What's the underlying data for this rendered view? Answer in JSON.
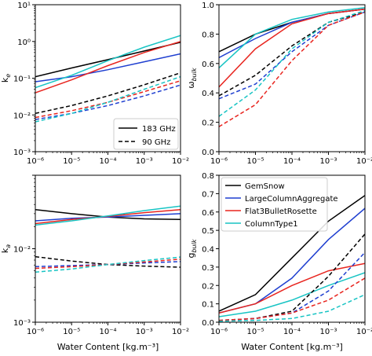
{
  "colors": {
    "GemSnow": "#000000",
    "LargeColumnAggregate": "#1f3fd0",
    "Flat3BulletRosette": "#e8251f",
    "ColumnType1": "#18c4c4"
  },
  "x_ticks": [
    "10⁻⁶",
    "10⁻⁵",
    "10⁻⁴",
    "10⁻³",
    "10⁻²"
  ],
  "x_label": "Water Content [kg.m⁻³]",
  "chart_data": [
    {
      "id": "ke",
      "type": "line",
      "xscale": "log",
      "yscale": "log",
      "xlim": [
        1e-06,
        0.01
      ],
      "ylim": [
        0.001,
        10
      ],
      "ylabel": "k",
      "ylabel_sub": "e",
      "x_tick_labels": [
        "10⁻⁶",
        "10⁻⁵",
        "10⁻⁴",
        "10⁻³",
        "10⁻²"
      ],
      "y_tick_labels": [
        "10⁻³",
        "10⁻²",
        "10⁻¹",
        "10⁰",
        "10¹"
      ],
      "legend": {
        "position": "lower-right",
        "entries": [
          {
            "label": "183 GHz",
            "style": "solid"
          },
          {
            "label": "90 GHz",
            "style": "dashed"
          }
        ]
      },
      "x": [
        1e-06,
        1e-05,
        0.0001,
        0.001,
        0.01
      ],
      "series": [
        {
          "name": "GemSnow",
          "freq": "183 GHz",
          "values": [
            0.11,
            0.19,
            0.32,
            0.55,
            0.95
          ]
        },
        {
          "name": "LargeColumnAggregate",
          "freq": "183 GHz",
          "values": [
            0.08,
            0.11,
            0.17,
            0.28,
            0.46
          ]
        },
        {
          "name": "Flat3BulletRosette",
          "freq": "183 GHz",
          "values": [
            0.04,
            0.09,
            0.22,
            0.5,
            1.0
          ]
        },
        {
          "name": "ColumnType1",
          "freq": "183 GHz",
          "values": [
            0.055,
            0.12,
            0.3,
            0.7,
            1.45
          ]
        },
        {
          "name": "GemSnow",
          "freq": "90 GHz",
          "values": [
            0.011,
            0.018,
            0.033,
            0.066,
            0.14
          ]
        },
        {
          "name": "LargeColumnAggregate",
          "freq": "90 GHz",
          "values": [
            0.0075,
            0.011,
            0.018,
            0.033,
            0.065
          ]
        },
        {
          "name": "Flat3BulletRosette",
          "freq": "90 GHz",
          "values": [
            0.0085,
            0.013,
            0.022,
            0.043,
            0.085
          ]
        },
        {
          "name": "ColumnType1",
          "freq": "90 GHz",
          "values": [
            0.0065,
            0.011,
            0.022,
            0.05,
            0.11
          ]
        }
      ]
    },
    {
      "id": "omega",
      "type": "line",
      "xscale": "log",
      "yscale": "linear",
      "xlim": [
        1e-06,
        0.01
      ],
      "ylim": [
        0,
        1.0
      ],
      "ylabel": "ω",
      "ylabel_sub": "bulk",
      "x_tick_labels": [
        "10⁻⁶",
        "10⁻⁵",
        "10⁻⁴",
        "10⁻³",
        "10⁻²"
      ],
      "y_ticks": [
        0,
        0.2,
        0.4,
        0.6,
        0.8,
        1.0
      ],
      "y_tick_labels": [
        "0.0",
        "0.2",
        "0.4",
        "0.6",
        "0.8",
        "1.0"
      ],
      "x": [
        1e-06,
        1e-05,
        0.0001,
        0.001,
        0.01
      ],
      "series": [
        {
          "name": "GemSnow",
          "freq": "183 GHz",
          "values": [
            0.68,
            0.8,
            0.88,
            0.94,
            0.97
          ]
        },
        {
          "name": "LargeColumnAggregate",
          "freq": "183 GHz",
          "values": [
            0.64,
            0.77,
            0.88,
            0.94,
            0.97
          ]
        },
        {
          "name": "Flat3BulletRosette",
          "freq": "183 GHz",
          "values": [
            0.44,
            0.7,
            0.87,
            0.94,
            0.97
          ]
        },
        {
          "name": "ColumnType1",
          "freq": "183 GHz",
          "values": [
            0.57,
            0.8,
            0.9,
            0.95,
            0.98
          ]
        },
        {
          "name": "GemSnow",
          "freq": "90 GHz",
          "values": [
            0.38,
            0.52,
            0.72,
            0.88,
            0.95
          ]
        },
        {
          "name": "LargeColumnAggregate",
          "freq": "90 GHz",
          "values": [
            0.36,
            0.46,
            0.68,
            0.86,
            0.95
          ]
        },
        {
          "name": "Flat3BulletRosette",
          "freq": "90 GHz",
          "values": [
            0.17,
            0.32,
            0.62,
            0.86,
            0.95
          ]
        },
        {
          "name": "ColumnType1",
          "freq": "90 GHz",
          "values": [
            0.24,
            0.42,
            0.7,
            0.88,
            0.96
          ]
        }
      ]
    },
    {
      "id": "ka",
      "type": "line",
      "xscale": "log",
      "yscale": "log",
      "xlim": [
        1e-06,
        0.01
      ],
      "ylim": [
        0.001,
        0.1
      ],
      "ylabel": "k",
      "ylabel_sub": "a",
      "x_tick_labels": [
        "10⁻⁶",
        "10⁻⁵",
        "10⁻⁴",
        "10⁻³",
        "10⁻²"
      ],
      "y_tick_labels": [
        "10⁻³",
        "10⁻²"
      ],
      "x": [
        1e-06,
        1e-05,
        0.0001,
        0.001,
        0.01
      ],
      "series": [
        {
          "name": "GemSnow",
          "freq": "183 GHz",
          "values": [
            0.034,
            0.03,
            0.027,
            0.0255,
            0.025
          ]
        },
        {
          "name": "LargeColumnAggregate",
          "freq": "183 GHz",
          "values": [
            0.024,
            0.026,
            0.027,
            0.0285,
            0.03
          ]
        },
        {
          "name": "Flat3BulletRosette",
          "freq": "183 GHz",
          "values": [
            0.022,
            0.025,
            0.0275,
            0.031,
            0.034
          ]
        },
        {
          "name": "ColumnType1",
          "freq": "183 GHz",
          "values": [
            0.021,
            0.024,
            0.028,
            0.033,
            0.038
          ]
        },
        {
          "name": "GemSnow",
          "freq": "90 GHz",
          "values": [
            0.0078,
            0.0068,
            0.0061,
            0.0058,
            0.0056
          ]
        },
        {
          "name": "LargeColumnAggregate",
          "freq": "90 GHz",
          "values": [
            0.0057,
            0.0059,
            0.0061,
            0.0064,
            0.0067
          ]
        },
        {
          "name": "Flat3BulletRosette",
          "freq": "90 GHz",
          "values": [
            0.0054,
            0.0057,
            0.0061,
            0.0066,
            0.0072
          ]
        },
        {
          "name": "ColumnType1",
          "freq": "90 GHz",
          "values": [
            0.0048,
            0.0053,
            0.0061,
            0.0069,
            0.0077
          ]
        }
      ]
    },
    {
      "id": "g",
      "type": "line",
      "xscale": "log",
      "yscale": "linear",
      "xlim": [
        1e-06,
        0.01
      ],
      "ylim": [
        0,
        0.8
      ],
      "ylabel": "g",
      "ylabel_sub": "bulk",
      "x_tick_labels": [
        "10⁻⁶",
        "10⁻⁵",
        "10⁻⁴",
        "10⁻³",
        "10⁻²"
      ],
      "y_ticks": [
        0,
        0.1,
        0.2,
        0.3,
        0.4,
        0.5,
        0.6,
        0.7,
        0.8
      ],
      "y_tick_labels": [
        "0.0",
        "0.1",
        "0.2",
        "0.3",
        "0.4",
        "0.5",
        "0.6",
        "0.7",
        "0.8"
      ],
      "legend": {
        "position": "top-left",
        "entries": [
          {
            "label": "GemSnow",
            "series": "GemSnow"
          },
          {
            "label": "LargeColumnAggregate",
            "series": "LargeColumnAggregate"
          },
          {
            "label": "Flat3BulletRosette",
            "series": "Flat3BulletRosette"
          },
          {
            "label": "ColumnType1",
            "series": "ColumnType1"
          }
        ]
      },
      "x": [
        1e-06,
        1e-05,
        0.0001,
        0.001,
        0.01
      ],
      "series": [
        {
          "name": "GemSnow",
          "freq": "183 GHz",
          "values": [
            0.06,
            0.15,
            0.35,
            0.55,
            0.69
          ]
        },
        {
          "name": "LargeColumnAggregate",
          "freq": "183 GHz",
          "values": [
            0.05,
            0.1,
            0.24,
            0.45,
            0.62
          ]
        },
        {
          "name": "Flat3BulletRosette",
          "freq": "183 GHz",
          "values": [
            0.05,
            0.1,
            0.2,
            0.28,
            0.32
          ]
        },
        {
          "name": "ColumnType1",
          "freq": "183 GHz",
          "values": [
            0.03,
            0.06,
            0.12,
            0.2,
            0.27
          ]
        },
        {
          "name": "GemSnow",
          "freq": "90 GHz",
          "values": [
            0.01,
            0.02,
            0.06,
            0.25,
            0.48
          ]
        },
        {
          "name": "LargeColumnAggregate",
          "freq": "90 GHz",
          "values": [
            0.01,
            0.02,
            0.05,
            0.17,
            0.38
          ]
        },
        {
          "name": "Flat3BulletRosette",
          "freq": "90 GHz",
          "values": [
            0.01,
            0.02,
            0.05,
            0.12,
            0.24
          ]
        },
        {
          "name": "ColumnType1",
          "freq": "90 GHz",
          "values": [
            0.005,
            0.01,
            0.02,
            0.06,
            0.15
          ]
        }
      ]
    }
  ]
}
